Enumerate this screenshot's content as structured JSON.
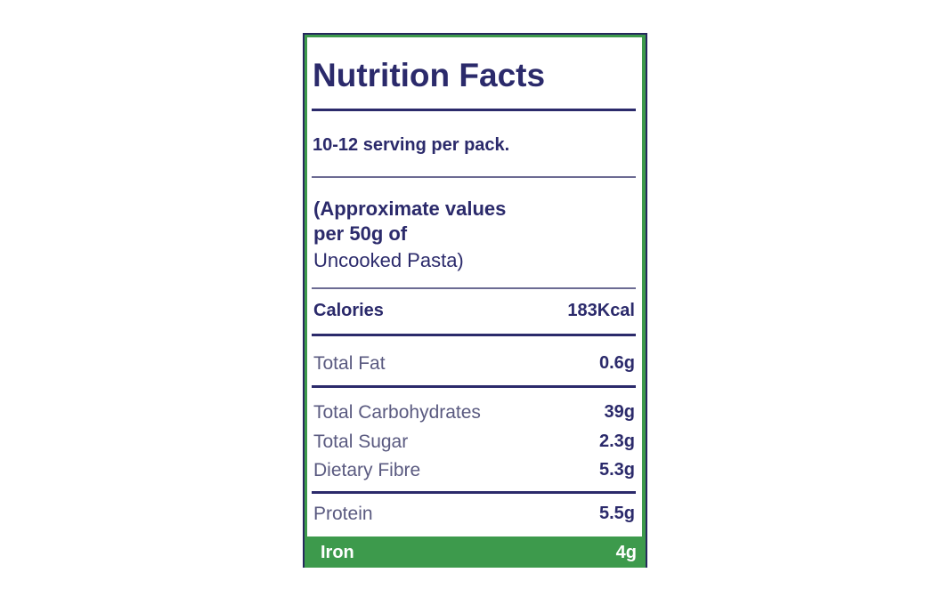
{
  "title": "Nutrition Facts",
  "serving": "10-12 serving per pack.",
  "note": [
    "(Approximate values",
    "per 50g of",
    "Uncooked Pasta)"
  ],
  "rows": [
    [
      "Calories",
      "183Kcal"
    ],
    [
      "Total Fat",
      "0.6g"
    ],
    [
      "Total Carbohydrates",
      "39g"
    ],
    [
      "Total Sugar",
      "2.3g"
    ],
    [
      "Dietary Fibre",
      "5.3g"
    ],
    [
      "Protein",
      "5.5g"
    ],
    [
      "Iron",
      "4g"
    ]
  ]
}
